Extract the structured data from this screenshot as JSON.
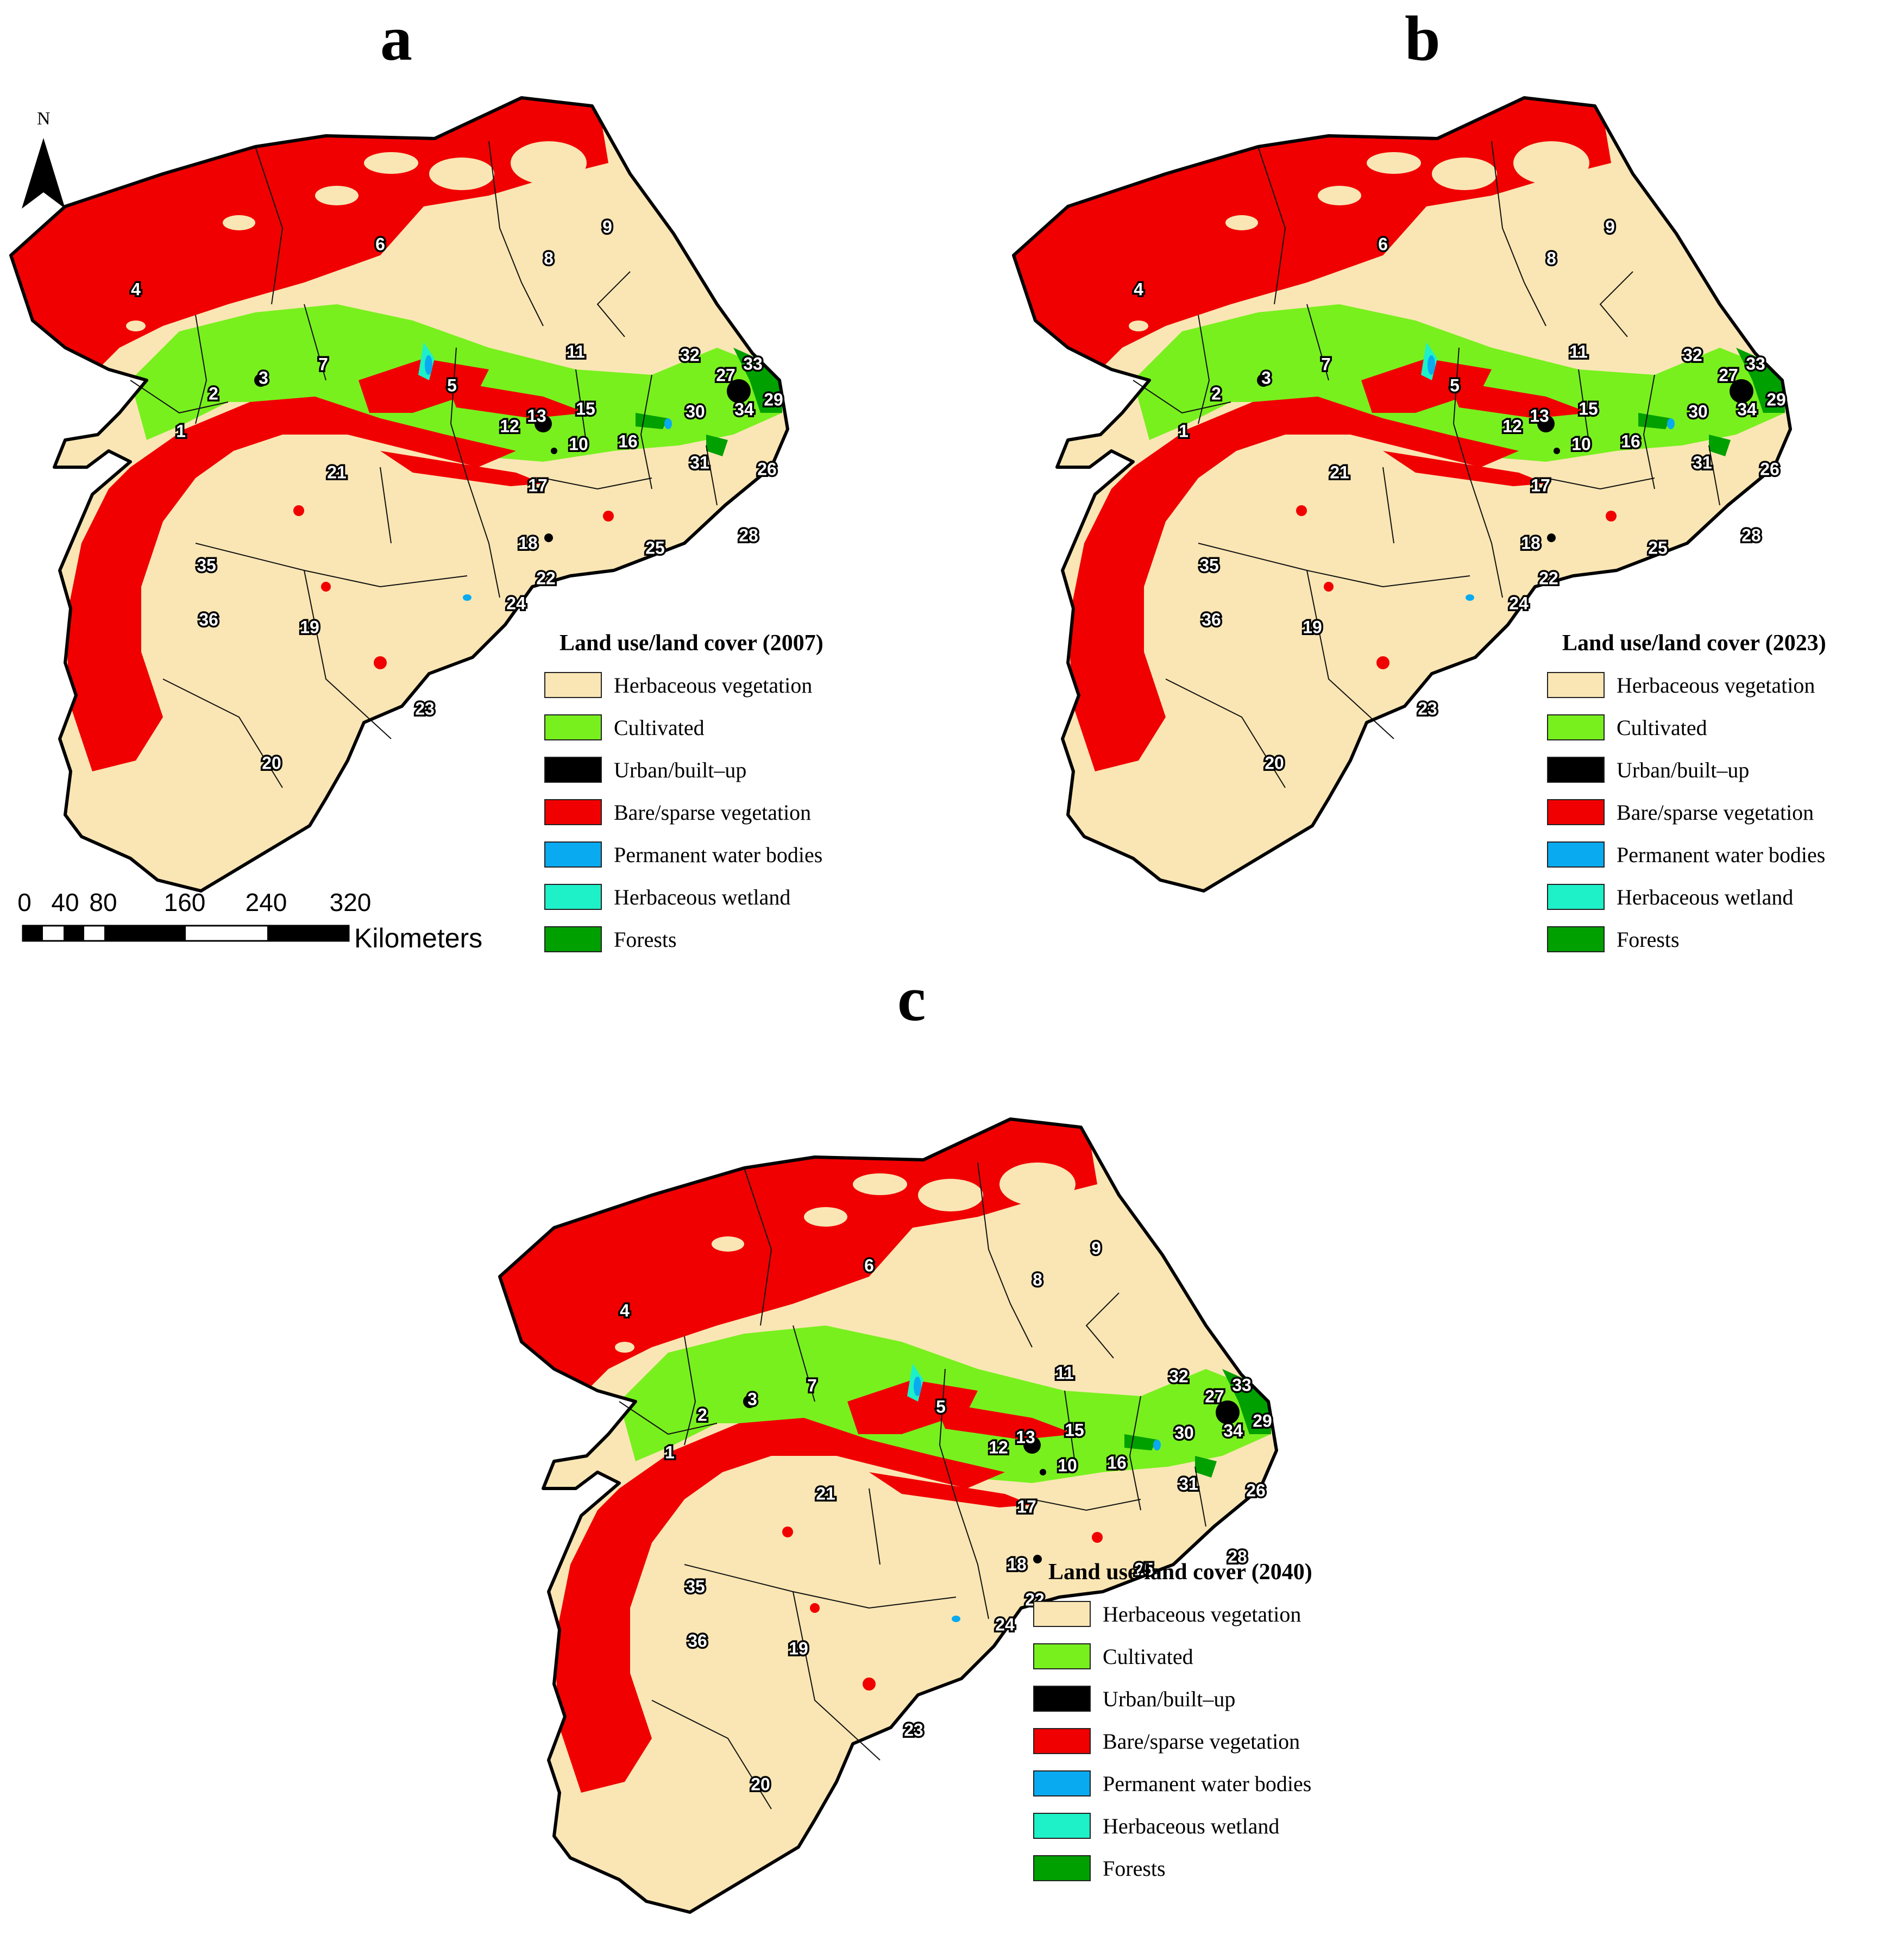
{
  "panels": [
    {
      "letter": "a",
      "legend_title": "Land use/land cover (2007)"
    },
    {
      "letter": "b",
      "legend_title": "Land use/land cover (2023)"
    },
    {
      "letter": "c",
      "legend_title": "Land use/land cover (2040)"
    }
  ],
  "legend_classes": [
    {
      "label": "Herbaceous vegetation",
      "color": "#fae6b4"
    },
    {
      "label": "Cultivated",
      "color": "#78f01e"
    },
    {
      "label": "Urban/built–up",
      "color": "#000000"
    },
    {
      "label": "Bare/sparse vegetation",
      "color": "#f00000"
    },
    {
      "label": "Permanent water bodies",
      "color": "#0aaaf0"
    },
    {
      "label": "Herbaceous wetland",
      "color": "#1ef0c8"
    },
    {
      "label": "Forests",
      "color": "#00a000"
    }
  ],
  "district_labels": [
    "1",
    "2",
    "3",
    "4",
    "5",
    "6",
    "7",
    "8",
    "9",
    "10",
    "11",
    "12",
    "13",
    "15",
    "16",
    "17",
    "18",
    "19",
    "20",
    "21",
    "22",
    "23",
    "24",
    "25",
    "26",
    "27",
    "28",
    "29",
    "30",
    "31",
    "32",
    "33",
    "34",
    "35",
    "36"
  ],
  "north_arrow": {
    "label": "N"
  },
  "scale_bar": {
    "ticks": [
      "0",
      "40",
      "80",
      "160",
      "240",
      "320"
    ],
    "units": "Kilometers"
  }
}
